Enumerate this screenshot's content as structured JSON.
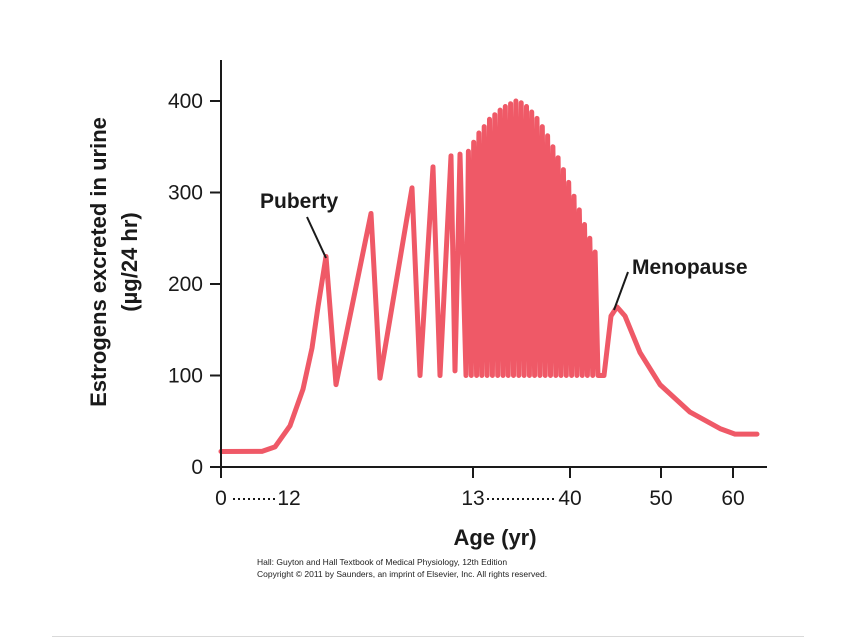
{
  "chart_data": {
    "type": "line",
    "ylabel_line1": "Estrogens excreted in urine",
    "ylabel_line2": "(µg/24 hr)",
    "xlabel": "Age (yr)",
    "ylim": [
      0,
      440
    ],
    "yticks": [
      0,
      100,
      200,
      300,
      400
    ],
    "xtick_labels": [
      "0",
      "12",
      "13",
      "40",
      "50",
      "60"
    ],
    "grid": false,
    "line_color": "#ef5967",
    "annotations": [
      {
        "text": "Puberty",
        "points_to_y": 230
      },
      {
        "text": "Menopause",
        "points_to_y": 175
      }
    ],
    "series": [
      {
        "values_description": "piecewise",
        "baseline_childhood": 17,
        "pubertal_cycles": [
          {
            "peak": 230,
            "trough": 90
          },
          {
            "peak": 277,
            "trough": 97
          },
          {
            "peak": 305,
            "trough": 100
          },
          {
            "peak": 328,
            "trough": 100
          },
          {
            "peak": 340,
            "trough": 105
          },
          {
            "peak": 342,
            "trough": 100
          }
        ],
        "reproductive_cycle_peaks": [
          345,
          355,
          365,
          372,
          380,
          385,
          390,
          394,
          397,
          400,
          398,
          394,
          388,
          381,
          372,
          362,
          350,
          338,
          325,
          311,
          296,
          281,
          265,
          250,
          235
        ],
        "reproductive_trough": 100,
        "menopause_peak": 175,
        "postmenopause_level": 36
      }
    ]
  },
  "credit": {
    "line1": "Hall: Guyton and Hall Textbook of Medical Physiology, 12th Edition",
    "line2": "Copyright © 2011 by Saunders, an imprint of Elsevier, Inc. All rights reserved."
  }
}
